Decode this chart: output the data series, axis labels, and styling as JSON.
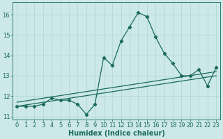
{
  "xlabel": "Humidex (Indice chaleur)",
  "background_color": "#cce8e8",
  "grid_color": "#afd4d4",
  "line_color": "#1a6b5a",
  "x_values": [
    0,
    1,
    2,
    3,
    4,
    5,
    6,
    7,
    8,
    9,
    10,
    11,
    12,
    13,
    14,
    15,
    16,
    17,
    18,
    19,
    20,
    21,
    22,
    23
  ],
  "y_main": [
    11.5,
    11.5,
    11.5,
    11.6,
    11.9,
    11.8,
    11.8,
    11.6,
    11.1,
    11.6,
    13.9,
    13.5,
    14.7,
    15.4,
    16.1,
    15.9,
    14.9,
    14.1,
    13.6,
    13.0,
    13.0,
    13.3,
    12.5,
    13.4
  ],
  "trend1_start": 11.5,
  "trend1_end": 13.0,
  "trend2_start": 11.7,
  "trend2_end": 13.2,
  "ylim": [
    10.85,
    16.6
  ],
  "xlim": [
    -0.5,
    23.5
  ],
  "yticks": [
    11,
    12,
    13,
    14,
    15,
    16
  ],
  "xticks": [
    0,
    1,
    2,
    3,
    4,
    5,
    6,
    7,
    8,
    9,
    10,
    11,
    12,
    13,
    14,
    15,
    16,
    17,
    18,
    19,
    20,
    21,
    22,
    23
  ],
  "tick_fontsize": 6,
  "xlabel_fontsize": 7
}
